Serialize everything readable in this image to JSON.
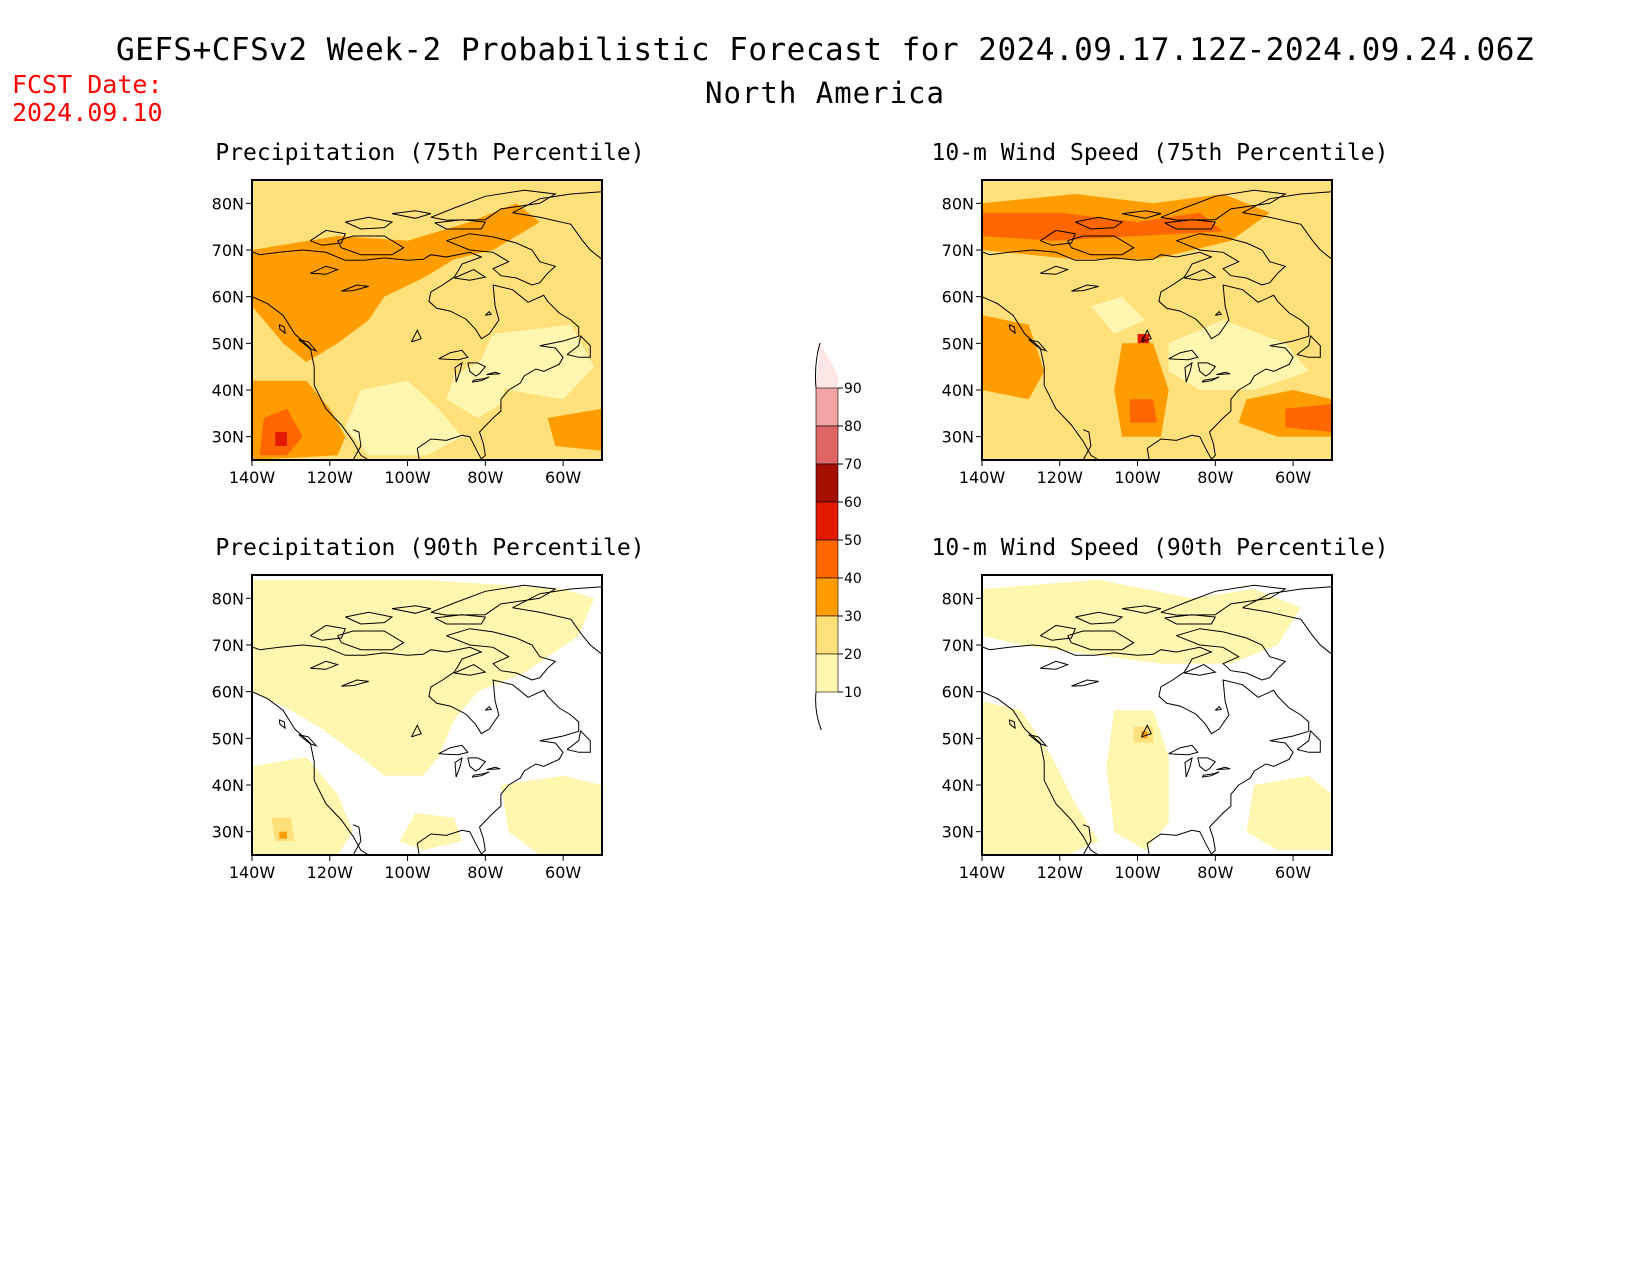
{
  "header": {
    "title": "GEFS+CFSv2 Week-2 Probabilistic Forecast for 2024.09.17.12Z-2024.09.24.06Z",
    "subtitle": "North America",
    "fcst_label": "FCST Date:",
    "fcst_date": "2024.09.10"
  },
  "map": {
    "lat_labels": [
      "80N",
      "70N",
      "60N",
      "50N",
      "40N",
      "30N"
    ],
    "lon_labels": [
      "140W",
      "120W",
      "100W",
      "80W",
      "60W"
    ],
    "extent": {
      "lon_min": -140,
      "lon_max": -50,
      "lat_min": 25,
      "lat_max": 85
    }
  },
  "panels": [
    {
      "title": "Precipitation (75th Percentile)",
      "level": "high",
      "variable": "precipitation"
    },
    {
      "title": "10-m Wind Speed (75th Percentile)",
      "level": "high",
      "variable": "wind"
    },
    {
      "title": "Precipitation (90th Percentile)",
      "level": "low",
      "variable": "precipitation"
    },
    {
      "title": "10-m Wind Speed (90th Percentile)",
      "level": "low",
      "variable": "wind"
    }
  ],
  "colorbar": {
    "labels": [
      "90",
      "80",
      "70",
      "60",
      "50",
      "40",
      "30",
      "20",
      "10"
    ],
    "colors": [
      "#fde6e6",
      "#f2a3a3",
      "#e06666",
      "#a50f00",
      "#e31a00",
      "#ff6600",
      "#ff9d00",
      "#ffe07a",
      "#fff7b0"
    ]
  },
  "colors": {
    "title": "#000000",
    "fcst": "#ff0000",
    "coast": "#000000"
  }
}
